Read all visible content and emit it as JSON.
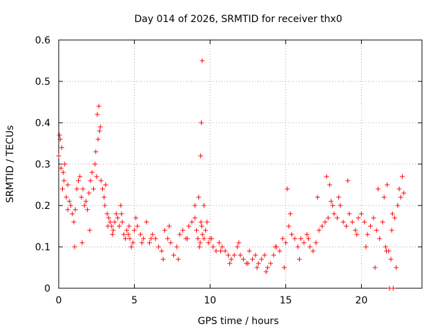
{
  "chart_data": {
    "type": "scatter",
    "title": "Day 014 of 2026, SRMTID for receiver thx0",
    "xlabel": "GPS time / hours",
    "ylabel": "SRMTID / TECUs",
    "xlim": [
      0,
      24
    ],
    "ylim": [
      0,
      0.6
    ],
    "grid": true,
    "marker": "+",
    "color": "#ff0000",
    "xticks": [
      0,
      5,
      10,
      15,
      20
    ],
    "xtick_labels": [
      "0",
      "5",
      "10",
      "15",
      "20"
    ],
    "yticks": [
      0,
      0.1,
      0.2,
      0.3,
      0.4,
      0.5,
      0.6
    ],
    "ytick_labels": [
      "0",
      "0.1",
      "0.2",
      "0.3",
      "0.4",
      "0.5",
      "0.6"
    ],
    "series": [
      {
        "name": "SRMTID",
        "x": [
          0.0,
          0.1,
          0.2,
          0.3,
          0.4,
          0.5,
          0.6,
          0.7,
          0.8,
          0.9,
          1.0,
          1.1,
          1.2,
          1.3,
          1.4,
          1.5,
          1.6,
          1.7,
          1.8,
          1.9,
          2.0,
          2.1,
          2.2,
          2.3,
          2.4,
          2.5,
          2.6,
          2.7,
          2.8,
          2.9,
          3.0,
          3.1,
          3.2,
          3.3,
          3.4,
          3.5,
          3.6,
          3.7,
          3.8,
          3.9,
          4.0,
          4.1,
          4.2,
          4.3,
          4.4,
          4.5,
          4.6,
          4.7,
          4.8,
          4.9,
          5.0,
          5.2,
          5.4,
          5.6,
          5.8,
          6.0,
          6.2,
          6.4,
          6.6,
          6.8,
          7.0,
          7.2,
          7.4,
          7.6,
          7.8,
          8.0,
          8.2,
          8.4,
          8.6,
          8.8,
          9.0,
          9.1,
          9.2,
          9.3,
          9.35,
          9.4,
          9.45,
          9.5,
          9.6,
          9.7,
          9.8,
          9.9,
          10.0,
          10.2,
          10.4,
          10.6,
          10.8,
          11.0,
          11.2,
          11.4,
          11.6,
          11.8,
          12.0,
          12.2,
          12.4,
          12.6,
          12.8,
          13.0,
          13.2,
          13.4,
          13.6,
          13.8,
          14.0,
          14.2,
          14.4,
          14.6,
          14.8,
          15.0,
          15.2,
          15.4,
          15.6,
          15.8,
          16.0,
          16.2,
          16.4,
          16.6,
          16.8,
          17.0,
          17.2,
          17.4,
          17.6,
          17.8,
          18.0,
          18.2,
          18.4,
          18.6,
          18.8,
          19.0,
          19.2,
          19.4,
          19.6,
          19.8,
          20.0,
          20.2,
          20.4,
          20.6,
          20.8,
          21.0,
          21.2,
          21.4,
          21.6,
          21.8,
          22.0,
          22.2,
          22.4,
          22.6,
          22.8,
          0.05,
          0.15,
          0.25,
          0.35,
          0.6,
          1.05,
          1.55,
          2.05,
          2.45,
          2.55,
          2.65,
          2.75,
          3.05,
          3.25,
          3.55,
          4.15,
          4.65,
          5.1,
          5.5,
          6.1,
          6.9,
          7.3,
          7.9,
          8.5,
          9.0,
          9.25,
          9.38,
          9.42,
          9.48,
          9.6,
          10.1,
          10.7,
          11.3,
          11.9,
          12.5,
          13.1,
          13.7,
          14.3,
          14.9,
          15.1,
          15.3,
          15.9,
          16.5,
          17.1,
          17.7,
          17.9,
          18.1,
          18.5,
          19.1,
          19.7,
          20.3,
          20.9,
          21.1,
          21.5,
          21.7,
          21.95,
          22.3,
          22.5,
          22.7,
          21.85,
          22.1,
          21.65,
          22.05,
          22.4
        ],
        "y": [
          0.32,
          0.36,
          0.34,
          0.28,
          0.3,
          0.22,
          0.25,
          0.21,
          0.2,
          0.18,
          0.16,
          0.19,
          0.24,
          0.26,
          0.27,
          0.22,
          0.24,
          0.2,
          0.21,
          0.19,
          0.23,
          0.26,
          0.28,
          0.24,
          0.3,
          0.27,
          0.36,
          0.38,
          0.26,
          0.24,
          0.22,
          0.25,
          0.18,
          0.17,
          0.16,
          0.15,
          0.14,
          0.16,
          0.18,
          0.17,
          0.15,
          0.2,
          0.16,
          0.13,
          0.12,
          0.14,
          0.13,
          0.12,
          0.1,
          0.11,
          0.14,
          0.15,
          0.13,
          0.12,
          0.16,
          0.11,
          0.13,
          0.12,
          0.1,
          0.09,
          0.14,
          0.12,
          0.11,
          0.08,
          0.1,
          0.13,
          0.14,
          0.12,
          0.15,
          0.16,
          0.17,
          0.14,
          0.12,
          0.1,
          0.11,
          0.16,
          0.15,
          0.13,
          0.12,
          0.14,
          0.16,
          0.11,
          0.12,
          0.1,
          0.09,
          0.11,
          0.1,
          0.09,
          0.08,
          0.07,
          0.08,
          0.1,
          0.08,
          0.07,
          0.06,
          0.09,
          0.07,
          0.08,
          0.06,
          0.07,
          0.08,
          0.05,
          0.06,
          0.08,
          0.1,
          0.09,
          0.12,
          0.11,
          0.15,
          0.13,
          0.12,
          0.1,
          0.12,
          0.11,
          0.13,
          0.1,
          0.09,
          0.11,
          0.14,
          0.15,
          0.16,
          0.17,
          0.21,
          0.18,
          0.17,
          0.2,
          0.16,
          0.15,
          0.18,
          0.16,
          0.14,
          0.17,
          0.18,
          0.16,
          0.13,
          0.15,
          0.17,
          0.14,
          0.12,
          0.16,
          0.1,
          0.09,
          0.14,
          0.17,
          0.2,
          0.22,
          0.23,
          0.37,
          0.29,
          0.24,
          0.26,
          0.19,
          0.1,
          0.11,
          0.14,
          0.33,
          0.42,
          0.44,
          0.39,
          0.2,
          0.15,
          0.13,
          0.18,
          0.15,
          0.17,
          0.11,
          0.12,
          0.07,
          0.15,
          0.07,
          0.12,
          0.2,
          0.22,
          0.32,
          0.4,
          0.55,
          0.2,
          0.12,
          0.09,
          0.06,
          0.11,
          0.06,
          0.05,
          0.04,
          0.1,
          0.05,
          0.24,
          0.18,
          0.07,
          0.12,
          0.22,
          0.27,
          0.25,
          0.2,
          0.22,
          0.26,
          0.13,
          0.1,
          0.05,
          0.24,
          0.22,
          0.25,
          0.07,
          0.05,
          0.24,
          0.27,
          0.0,
          0.0,
          0.09,
          0.18,
          0.2
        ]
      }
    ]
  }
}
